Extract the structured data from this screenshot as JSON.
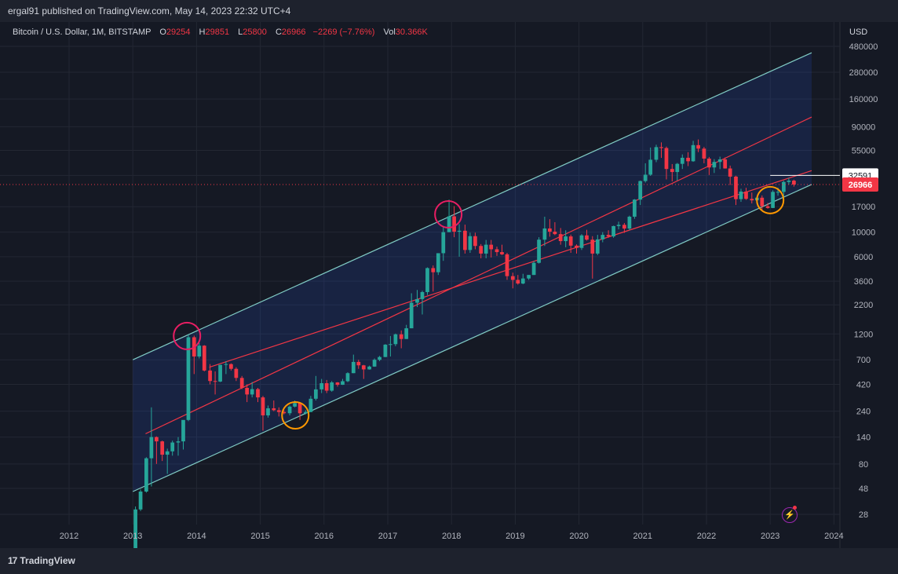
{
  "header": {
    "publish_line": "ergal91 published on TradingView.com, May 14, 2023 22:32 UTC+4"
  },
  "legend": {
    "symbol": "Bitcoin / U.S. Dollar, 1M, BITSTAMP",
    "open_label": "O",
    "open": "29254",
    "high_label": "H",
    "high": "29851",
    "low_label": "L",
    "low": "25800",
    "close_label": "C",
    "close": "26966",
    "change": "−2269 (−7.76%)",
    "vol_label": "Vol",
    "vol": "30.366K"
  },
  "price_axis": {
    "currency": "USD",
    "badge_level": "32591",
    "badge_last": "26966"
  },
  "footer": {
    "brand": "TradingView",
    "brand_mark": "17"
  },
  "colors": {
    "up": "#26a69a",
    "down": "#f23645",
    "channel": "#80cbc4",
    "mid": "#f23645",
    "circle_pink": "#e91e63",
    "circle_orange": "#ff9800"
  },
  "chart_data": {
    "type": "candlestick",
    "title": "",
    "y_scale": "log",
    "y_ticks": [
      28,
      48,
      80,
      140,
      240,
      420,
      700,
      1200,
      2200,
      3600,
      6000,
      10000,
      17000,
      32591,
      55000,
      90000,
      160000,
      280000,
      480000
    ],
    "x_ticks": [
      "2012",
      "2013",
      "2014",
      "2015",
      "2016",
      "2017",
      "2018",
      "2019",
      "2020",
      "2021",
      "2022",
      "2023",
      "2024"
    ],
    "last_price": 26966,
    "price_line": 32591,
    "channel": {
      "upper": [
        {
          "x": 2013.0,
          "y": 700
        },
        {
          "x": 2023.65,
          "y": 420000
        }
      ],
      "lower": [
        {
          "x": 2013.0,
          "y": 45
        },
        {
          "x": 2023.65,
          "y": 27000
        }
      ],
      "mid_upper": [
        {
          "x": 2013.2,
          "y": 150
        },
        {
          "x": 2023.65,
          "y": 110000
        }
      ],
      "mid_lower": [
        {
          "x": 2014.2,
          "y": 600
        },
        {
          "x": 2023.65,
          "y": 36000
        }
      ]
    },
    "highlights": [
      {
        "x": 2013.85,
        "y": 1150,
        "color": "pink"
      },
      {
        "x": 2017.95,
        "y": 14500,
        "color": "pink"
      },
      {
        "x": 2015.55,
        "y": 220,
        "color": "orange"
      },
      {
        "x": 2023.0,
        "y": 19500,
        "color": "orange"
      }
    ],
    "ohlc": [
      [
        2013.0,
        13,
        33,
        13,
        31
      ],
      [
        2013.08,
        31,
        47,
        30,
        45
      ],
      [
        2013.17,
        45,
        92,
        44,
        90
      ],
      [
        2013.25,
        90,
        260,
        50,
        140
      ],
      [
        2013.33,
        140,
        142,
        80,
        128
      ],
      [
        2013.42,
        128,
        130,
        85,
        97
      ],
      [
        2013.5,
        97,
        110,
        65,
        104
      ],
      [
        2013.58,
        104,
        130,
        95,
        125
      ],
      [
        2013.67,
        125,
        140,
        95,
        128
      ],
      [
        2013.75,
        128,
        150,
        108,
        200
      ],
      [
        2013.83,
        200,
        1180,
        195,
        1120
      ],
      [
        2013.92,
        1120,
        1160,
        520,
        750
      ],
      [
        2014.0,
        750,
        1000,
        720,
        940
      ],
      [
        2014.08,
        940,
        950,
        550,
        560
      ],
      [
        2014.17,
        560,
        640,
        420,
        450
      ],
      [
        2014.25,
        450,
        550,
        340,
        445
      ],
      [
        2014.33,
        445,
        630,
        440,
        630
      ],
      [
        2014.42,
        630,
        680,
        520,
        640
      ],
      [
        2014.5,
        640,
        650,
        560,
        580
      ],
      [
        2014.58,
        580,
        600,
        450,
        480
      ],
      [
        2014.67,
        480,
        500,
        380,
        390
      ],
      [
        2014.75,
        390,
        420,
        290,
        340
      ],
      [
        2014.83,
        340,
        440,
        320,
        380
      ],
      [
        2014.92,
        380,
        390,
        290,
        320
      ],
      [
        2015.0,
        320,
        330,
        160,
        220
      ],
      [
        2015.08,
        220,
        270,
        210,
        255
      ],
      [
        2015.17,
        255,
        300,
        240,
        245
      ],
      [
        2015.25,
        245,
        260,
        215,
        236
      ],
      [
        2015.33,
        236,
        245,
        225,
        230
      ],
      [
        2015.42,
        230,
        270,
        220,
        264
      ],
      [
        2015.5,
        264,
        300,
        260,
        284
      ],
      [
        2015.58,
        284,
        290,
        200,
        230
      ],
      [
        2015.67,
        230,
        245,
        225,
        236
      ],
      [
        2015.75,
        236,
        330,
        235,
        311
      ],
      [
        2015.83,
        311,
        500,
        300,
        378
      ],
      [
        2015.92,
        378,
        470,
        350,
        430
      ],
      [
        2016.0,
        430,
        460,
        350,
        368
      ],
      [
        2016.08,
        368,
        450,
        360,
        437
      ],
      [
        2016.17,
        437,
        440,
        400,
        416
      ],
      [
        2016.25,
        416,
        470,
        415,
        448
      ],
      [
        2016.33,
        448,
        540,
        440,
        530
      ],
      [
        2016.42,
        530,
        780,
        530,
        670
      ],
      [
        2016.5,
        670,
        700,
        580,
        624
      ],
      [
        2016.58,
        624,
        630,
        470,
        573
      ],
      [
        2016.67,
        573,
        620,
        570,
        608
      ],
      [
        2016.75,
        608,
        720,
        605,
        700
      ],
      [
        2016.83,
        700,
        760,
        680,
        742
      ],
      [
        2016.92,
        742,
        970,
        740,
        960
      ],
      [
        2017.0,
        960,
        1150,
        750,
        970
      ],
      [
        2017.08,
        970,
        1210,
        930,
        1190
      ],
      [
        2017.17,
        1190,
        1290,
        890,
        1080
      ],
      [
        2017.25,
        1080,
        1450,
        1080,
        1350
      ],
      [
        2017.33,
        1350,
        2800,
        1350,
        2300
      ],
      [
        2017.42,
        2300,
        3000,
        2100,
        2480
      ],
      [
        2017.5,
        2480,
        2950,
        1800,
        2870
      ],
      [
        2017.58,
        2870,
        4800,
        2700,
        4730
      ],
      [
        2017.67,
        4730,
        5000,
        2900,
        4340
      ],
      [
        2017.75,
        4340,
        6450,
        4100,
        6450
      ],
      [
        2017.83,
        6450,
        11400,
        5500,
        10000
      ],
      [
        2017.92,
        10000,
        19700,
        10000,
        13900
      ],
      [
        2018.0,
        13900,
        17200,
        9000,
        10100
      ],
      [
        2018.08,
        10100,
        11800,
        6000,
        10300
      ],
      [
        2018.17,
        10300,
        11700,
        6400,
        6900
      ],
      [
        2018.25,
        6900,
        9900,
        6500,
        9200
      ],
      [
        2018.33,
        9200,
        9900,
        7000,
        7500
      ],
      [
        2018.42,
        7500,
        7800,
        5800,
        6400
      ],
      [
        2018.5,
        6400,
        8500,
        5800,
        7700
      ],
      [
        2018.58,
        7700,
        8500,
        5900,
        7000
      ],
      [
        2018.67,
        7000,
        7400,
        6100,
        6600
      ],
      [
        2018.75,
        6600,
        7700,
        6200,
        6300
      ],
      [
        2018.83,
        6300,
        6500,
        3700,
        4000
      ],
      [
        2018.92,
        4000,
        4300,
        3100,
        3700
      ],
      [
        2019.0,
        3700,
        4100,
        3350,
        3430
      ],
      [
        2019.08,
        3430,
        4200,
        3380,
        3810
      ],
      [
        2019.17,
        3810,
        4100,
        3700,
        4100
      ],
      [
        2019.25,
        4100,
        5500,
        4100,
        5280
      ],
      [
        2019.33,
        5280,
        9000,
        5200,
        8550
      ],
      [
        2019.42,
        8550,
        13800,
        7500,
        10800
      ],
      [
        2019.5,
        10800,
        13100,
        9100,
        10100
      ],
      [
        2019.58,
        10100,
        12300,
        9400,
        9600
      ],
      [
        2019.67,
        9600,
        10900,
        7700,
        8300
      ],
      [
        2019.75,
        8300,
        10400,
        7300,
        9150
      ],
      [
        2019.83,
        9150,
        9500,
        6500,
        7550
      ],
      [
        2019.92,
        7550,
        7750,
        6400,
        7200
      ],
      [
        2020.0,
        7200,
        9600,
        6900,
        9350
      ],
      [
        2020.08,
        9350,
        10500,
        8400,
        8550
      ],
      [
        2020.17,
        8550,
        9200,
        3800,
        6400
      ],
      [
        2020.25,
        6400,
        9450,
        6200,
        8600
      ],
      [
        2020.33,
        8600,
        10000,
        8100,
        9450
      ],
      [
        2020.42,
        9450,
        10400,
        8900,
        9150
      ],
      [
        2020.5,
        9150,
        11450,
        8900,
        11350
      ],
      [
        2020.58,
        11350,
        12450,
        10600,
        11650
      ],
      [
        2020.67,
        11650,
        12100,
        9850,
        10780
      ],
      [
        2020.75,
        10780,
        14100,
        10400,
        13800
      ],
      [
        2020.83,
        13800,
        19900,
        13200,
        19700
      ],
      [
        2020.92,
        19700,
        29300,
        17600,
        29000
      ],
      [
        2021.0,
        29000,
        42000,
        28100,
        33100
      ],
      [
        2021.08,
        33100,
        58300,
        32300,
        45200
      ],
      [
        2021.17,
        45200,
        61800,
        43000,
        58800
      ],
      [
        2021.25,
        58800,
        64900,
        47000,
        57700
      ],
      [
        2021.33,
        57700,
        59500,
        30000,
        37300
      ],
      [
        2021.42,
        37300,
        41300,
        28800,
        35000
      ],
      [
        2021.5,
        35000,
        42300,
        29300,
        41500
      ],
      [
        2021.58,
        41500,
        50500,
        37300,
        47100
      ],
      [
        2021.67,
        47100,
        52900,
        39600,
        43800
      ],
      [
        2021.75,
        43800,
        67000,
        43300,
        61300
      ],
      [
        2021.83,
        61300,
        69000,
        53000,
        57000
      ],
      [
        2021.92,
        57000,
        59100,
        42000,
        46300
      ],
      [
        2022.0,
        46300,
        47900,
        32900,
        38500
      ],
      [
        2022.08,
        38500,
        45800,
        34300,
        43200
      ],
      [
        2022.17,
        43200,
        48200,
        37200,
        45500
      ],
      [
        2022.25,
        45500,
        47400,
        37600,
        37700
      ],
      [
        2022.33,
        37700,
        40000,
        26700,
        31800
      ],
      [
        2022.42,
        31800,
        32400,
        17600,
        19900
      ],
      [
        2022.5,
        19900,
        24700,
        18800,
        23300
      ],
      [
        2022.58,
        23300,
        25200,
        19600,
        20000
      ],
      [
        2022.67,
        20000,
        22800,
        18200,
        19400
      ],
      [
        2022.75,
        19400,
        20500,
        18200,
        20500
      ],
      [
        2022.83,
        20500,
        21500,
        15500,
        17150
      ],
      [
        2022.92,
        17150,
        18400,
        16300,
        16550
      ],
      [
        2023.0,
        16550,
        23950,
        16500,
        23140
      ],
      [
        2023.08,
        23140,
        25250,
        21400,
        23150
      ],
      [
        2023.17,
        23150,
        29200,
        19600,
        28460
      ],
      [
        2023.25,
        28460,
        31000,
        26900,
        29250
      ],
      [
        2023.33,
        29254,
        29851,
        25800,
        26966
      ]
    ]
  }
}
